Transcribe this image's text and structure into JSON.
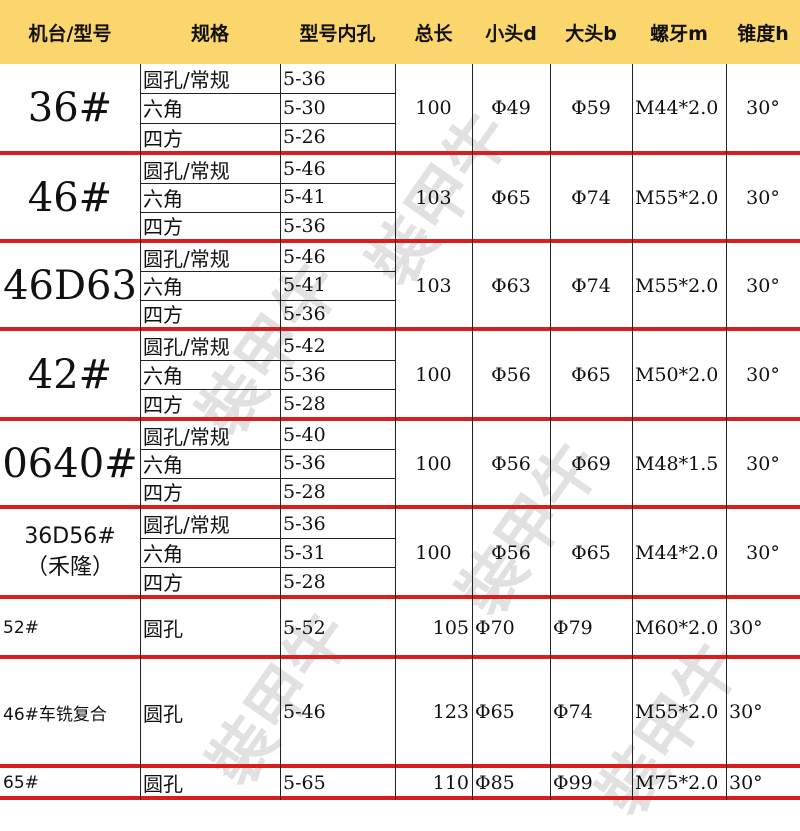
{
  "headers": [
    "机台/型号",
    "规格",
    "型号内孔",
    "总长",
    "小头d",
    "大头b",
    "螺牙m",
    "锥度h"
  ],
  "watermark": "裝甲牛",
  "colors": {
    "header_bg": "#fbd66c",
    "row_separator": "#d81e1e"
  },
  "groups": [
    {
      "model": "36#",
      "specs": [
        [
          "圆孔/常规",
          "5-36"
        ],
        [
          "六角",
          "5-30"
        ],
        [
          "四方",
          "5-26"
        ]
      ],
      "length": "100",
      "d": "Φ49",
      "b": "Φ59",
      "m": "M44*2.0",
      "h": "30°"
    },
    {
      "model": "46#",
      "specs": [
        [
          "圆孔/常规",
          "5-46"
        ],
        [
          "六角",
          "5-41"
        ],
        [
          "四方",
          "5-36"
        ]
      ],
      "length": "103",
      "d": "Φ65",
      "b": "Φ74",
      "m": "M55*2.0",
      "h": "30°"
    },
    {
      "model": "46D63",
      "specs": [
        [
          "圆孔/常规",
          "5-46"
        ],
        [
          "六角",
          "5-41"
        ],
        [
          "四方",
          "5-36"
        ]
      ],
      "length": "103",
      "d": "Φ63",
      "b": "Φ74",
      "m": "M55*2.0",
      "h": "30°"
    },
    {
      "model": "42#",
      "specs": [
        [
          "圆孔/常规",
          "5-42"
        ],
        [
          "六角",
          "5-36"
        ],
        [
          "四方",
          "5-28"
        ]
      ],
      "length": "100",
      "d": "Φ56",
      "b": "Φ65",
      "m": "M50*2.0",
      "h": "30°"
    },
    {
      "model": "0640#",
      "specs": [
        [
          "圆孔/常规",
          "5-40"
        ],
        [
          "六角",
          "5-36"
        ],
        [
          "四方",
          "5-28"
        ]
      ],
      "length": "100",
      "d": "Φ56",
      "b": "Φ69",
      "m": "M48*1.5",
      "h": "30°"
    },
    {
      "model": "36D56#",
      "model_note": "（禾隆）",
      "specs": [
        [
          "圆孔/常规",
          "5-36"
        ],
        [
          "六角",
          "5-31"
        ],
        [
          "四方",
          "5-28"
        ]
      ],
      "length": "100",
      "d": "Φ56",
      "b": "Φ65",
      "m": "M44*2.0",
      "h": "30°"
    },
    {
      "model": "52#",
      "specs": [
        [
          "圆孔",
          "5-52"
        ]
      ],
      "length": "105",
      "d": "Φ70",
      "b": "Φ79",
      "m": "M60*2.0",
      "h": "30°"
    },
    {
      "model": "46#车铣复合",
      "specs": [
        [
          "圆孔",
          "5-46"
        ]
      ],
      "length": "123",
      "d": "Φ65",
      "b": "Φ74",
      "m": "M55*2.0",
      "h": "30°"
    },
    {
      "model": "65#",
      "specs": [
        [
          "圆孔",
          "5-65"
        ]
      ],
      "length": "110",
      "d": "Φ85",
      "b": "Φ99",
      "m": "M75*2.0",
      "h": "30°"
    }
  ]
}
